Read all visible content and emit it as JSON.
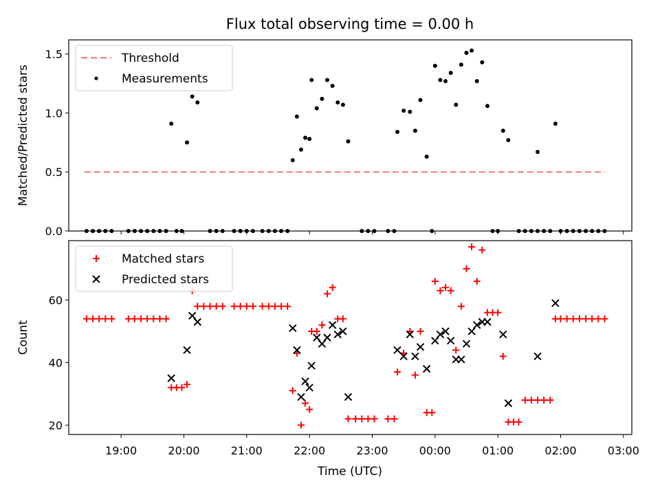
{
  "title": "Flux total observing time = 0.00 h",
  "xlabel": "Time (UTC)",
  "colors": {
    "threshold": "#f08080",
    "matched": "#ff0000",
    "predicted": "#000000",
    "measurement": "#000000"
  },
  "chart_data": [
    {
      "type": "scatter",
      "ylabel": "Matched/Predicted stars",
      "ylim": [
        0,
        1.62
      ],
      "yticks": [
        0.0,
        0.5,
        1.0,
        1.5
      ],
      "ytick_labels": [
        "0.0",
        "0.5",
        "1.0",
        "1.5"
      ],
      "legend": {
        "placement": "top-left",
        "entries": [
          "Threshold",
          "Measurements"
        ]
      },
      "threshold": {
        "name": "Threshold",
        "y": 0.5,
        "x_range": [
          "18:25",
          "02:42"
        ]
      },
      "series": [
        {
          "name": "Measurements",
          "points": [
            [
              "18:27",
              0
            ],
            [
              "18:33",
              0
            ],
            [
              "18:39",
              0
            ],
            [
              "18:45",
              0
            ],
            [
              "18:51",
              0
            ],
            [
              "19:07",
              0
            ],
            [
              "19:13",
              0
            ],
            [
              "19:19",
              0
            ],
            [
              "19:25",
              0
            ],
            [
              "19:31",
              0
            ],
            [
              "19:37",
              0
            ],
            [
              "19:43",
              0
            ],
            [
              "19:48",
              0.91
            ],
            [
              "19:53",
              0
            ],
            [
              "19:58",
              0
            ],
            [
              "20:03",
              0.75
            ],
            [
              "20:08",
              1.14
            ],
            [
              "20:13",
              1.09
            ],
            [
              "20:25",
              0
            ],
            [
              "20:31",
              0
            ],
            [
              "20:37",
              0
            ],
            [
              "20:48",
              0
            ],
            [
              "20:54",
              0
            ],
            [
              "21:00",
              0
            ],
            [
              "21:06",
              0
            ],
            [
              "21:15",
              0
            ],
            [
              "21:21",
              0
            ],
            [
              "21:27",
              0
            ],
            [
              "21:33",
              0
            ],
            [
              "21:39",
              0
            ],
            [
              "21:44",
              0.6
            ],
            [
              "21:48",
              0.97
            ],
            [
              "21:52",
              0.69
            ],
            [
              "21:56",
              0.79
            ],
            [
              "22:00",
              0.78
            ],
            [
              "22:02",
              1.28
            ],
            [
              "22:07",
              1.04
            ],
            [
              "22:12",
              1.12
            ],
            [
              "22:17",
              1.28
            ],
            [
              "22:22",
              1.23
            ],
            [
              "22:27",
              1.09
            ],
            [
              "22:32",
              1.07
            ],
            [
              "22:37",
              0.76
            ],
            [
              "22:50",
              0
            ],
            [
              "22:56",
              0
            ],
            [
              "23:02",
              0
            ],
            [
              "23:15",
              0
            ],
            [
              "23:21",
              0
            ],
            [
              "23:24",
              0.84
            ],
            [
              "23:30",
              1.02
            ],
            [
              "23:36",
              1.01
            ],
            [
              "23:41",
              0.85
            ],
            [
              "23:46",
              1.11
            ],
            [
              "23:52",
              0.63
            ],
            [
              "23:57",
              0
            ],
            [
              "00:00",
              1.4
            ],
            [
              "00:05",
              1.28
            ],
            [
              "00:10",
              1.27
            ],
            [
              "00:15",
              1.34
            ],
            [
              "00:20",
              1.07
            ],
            [
              "00:25",
              1.41
            ],
            [
              "00:30",
              1.51
            ],
            [
              "00:35",
              1.53
            ],
            [
              "00:40",
              1.27
            ],
            [
              "00:45",
              1.43
            ],
            [
              "00:50",
              1.06
            ],
            [
              "00:55",
              0
            ],
            [
              "01:00",
              0
            ],
            [
              "01:05",
              0.85
            ],
            [
              "01:10",
              0.77
            ],
            [
              "01:20",
              0
            ],
            [
              "01:26",
              0
            ],
            [
              "01:32",
              0
            ],
            [
              "01:38",
              0
            ],
            [
              "01:44",
              0
            ],
            [
              "01:50",
              0
            ],
            [
              "01:38",
              0.67
            ],
            [
              "01:55",
              0.91
            ],
            [
              "02:00",
              0
            ],
            [
              "02:06",
              0
            ],
            [
              "02:12",
              0
            ],
            [
              "02:18",
              0
            ],
            [
              "02:24",
              0
            ],
            [
              "02:30",
              0
            ],
            [
              "02:36",
              0
            ],
            [
              "02:42",
              0
            ]
          ]
        }
      ]
    },
    {
      "type": "scatter",
      "ylabel": "Count",
      "ylim": [
        17,
        79
      ],
      "yticks": [
        20,
        40,
        60
      ],
      "ytick_labels": [
        "20",
        "40",
        "60"
      ],
      "xlim": [
        "18:10",
        "03:08"
      ],
      "xticks": [
        "19:00",
        "20:00",
        "21:00",
        "22:00",
        "23:00",
        "00:00",
        "01:00",
        "02:00",
        "03:00"
      ],
      "legend": {
        "placement": "top-left",
        "entries": [
          "Matched stars",
          "Predicted stars"
        ]
      },
      "series": [
        {
          "name": "Matched stars",
          "marker": "+",
          "points": [
            [
              "18:27",
              54
            ],
            [
              "18:33",
              54
            ],
            [
              "18:39",
              54
            ],
            [
              "18:45",
              54
            ],
            [
              "18:51",
              54
            ],
            [
              "19:07",
              54
            ],
            [
              "19:13",
              54
            ],
            [
              "19:19",
              54
            ],
            [
              "19:25",
              54
            ],
            [
              "19:31",
              54
            ],
            [
              "19:37",
              54
            ],
            [
              "19:43",
              54
            ],
            [
              "19:48",
              32
            ],
            [
              "19:53",
              32
            ],
            [
              "19:58",
              32
            ],
            [
              "20:03",
              33
            ],
            [
              "20:08",
              63
            ],
            [
              "20:13",
              58
            ],
            [
              "20:19",
              58
            ],
            [
              "20:25",
              58
            ],
            [
              "20:31",
              58
            ],
            [
              "20:37",
              58
            ],
            [
              "20:48",
              58
            ],
            [
              "20:54",
              58
            ],
            [
              "21:00",
              58
            ],
            [
              "21:06",
              58
            ],
            [
              "21:15",
              58
            ],
            [
              "21:21",
              58
            ],
            [
              "21:27",
              58
            ],
            [
              "21:33",
              58
            ],
            [
              "21:39",
              58
            ],
            [
              "21:44",
              31
            ],
            [
              "21:48",
              43
            ],
            [
              "21:52",
              20
            ],
            [
              "21:56",
              27
            ],
            [
              "22:00",
              25
            ],
            [
              "22:02",
              50
            ],
            [
              "22:07",
              50
            ],
            [
              "22:12",
              52
            ],
            [
              "22:17",
              62
            ],
            [
              "22:22",
              64
            ],
            [
              "22:27",
              54
            ],
            [
              "22:32",
              54
            ],
            [
              "22:37",
              22
            ],
            [
              "22:44",
              22
            ],
            [
              "22:50",
              22
            ],
            [
              "22:56",
              22
            ],
            [
              "23:02",
              22
            ],
            [
              "23:15",
              22
            ],
            [
              "23:21",
              22
            ],
            [
              "23:24",
              37
            ],
            [
              "23:30",
              43
            ],
            [
              "23:36",
              50
            ],
            [
              "23:41",
              36
            ],
            [
              "23:46",
              50
            ],
            [
              "23:52",
              24
            ],
            [
              "23:57",
              24
            ],
            [
              "00:00",
              66
            ],
            [
              "00:05",
              63
            ],
            [
              "00:10",
              64
            ],
            [
              "00:15",
              63
            ],
            [
              "00:20",
              44
            ],
            [
              "00:25",
              58
            ],
            [
              "00:30",
              70
            ],
            [
              "00:35",
              77
            ],
            [
              "00:40",
              66
            ],
            [
              "00:45",
              76
            ],
            [
              "00:50",
              56
            ],
            [
              "00:55",
              56
            ],
            [
              "01:00",
              56
            ],
            [
              "01:05",
              42
            ],
            [
              "01:10",
              21
            ],
            [
              "01:15",
              21
            ],
            [
              "01:20",
              21
            ],
            [
              "01:26",
              28
            ],
            [
              "01:32",
              28
            ],
            [
              "01:38",
              28
            ],
            [
              "01:44",
              28
            ],
            [
              "01:50",
              28
            ],
            [
              "01:55",
              54
            ],
            [
              "02:00",
              54
            ],
            [
              "02:06",
              54
            ],
            [
              "02:12",
              54
            ],
            [
              "02:18",
              54
            ],
            [
              "02:24",
              54
            ],
            [
              "02:30",
              54
            ],
            [
              "02:36",
              54
            ],
            [
              "02:42",
              54
            ]
          ]
        },
        {
          "name": "Predicted stars",
          "marker": "x",
          "points": [
            [
              "19:48",
              35
            ],
            [
              "20:03",
              44
            ],
            [
              "20:08",
              55
            ],
            [
              "20:13",
              53
            ],
            [
              "21:44",
              51
            ],
            [
              "21:48",
              44
            ],
            [
              "21:52",
              29
            ],
            [
              "21:56",
              34
            ],
            [
              "22:00",
              32
            ],
            [
              "22:02",
              39
            ],
            [
              "22:07",
              48
            ],
            [
              "22:12",
              46
            ],
            [
              "22:17",
              48
            ],
            [
              "22:22",
              52
            ],
            [
              "22:27",
              49
            ],
            [
              "22:32",
              50
            ],
            [
              "22:37",
              29
            ],
            [
              "23:24",
              44
            ],
            [
              "23:30",
              42
            ],
            [
              "23:36",
              49
            ],
            [
              "23:41",
              42
            ],
            [
              "23:46",
              45
            ],
            [
              "23:52",
              38
            ],
            [
              "00:00",
              47
            ],
            [
              "00:05",
              49
            ],
            [
              "00:10",
              50
            ],
            [
              "00:15",
              47
            ],
            [
              "00:20",
              41
            ],
            [
              "00:25",
              41
            ],
            [
              "00:30",
              46
            ],
            [
              "00:35",
              50
            ],
            [
              "00:40",
              52
            ],
            [
              "00:45",
              53
            ],
            [
              "00:50",
              53
            ],
            [
              "01:05",
              49
            ],
            [
              "01:10",
              27
            ],
            [
              "01:38",
              42
            ],
            [
              "01:55",
              59
            ]
          ]
        }
      ]
    }
  ]
}
